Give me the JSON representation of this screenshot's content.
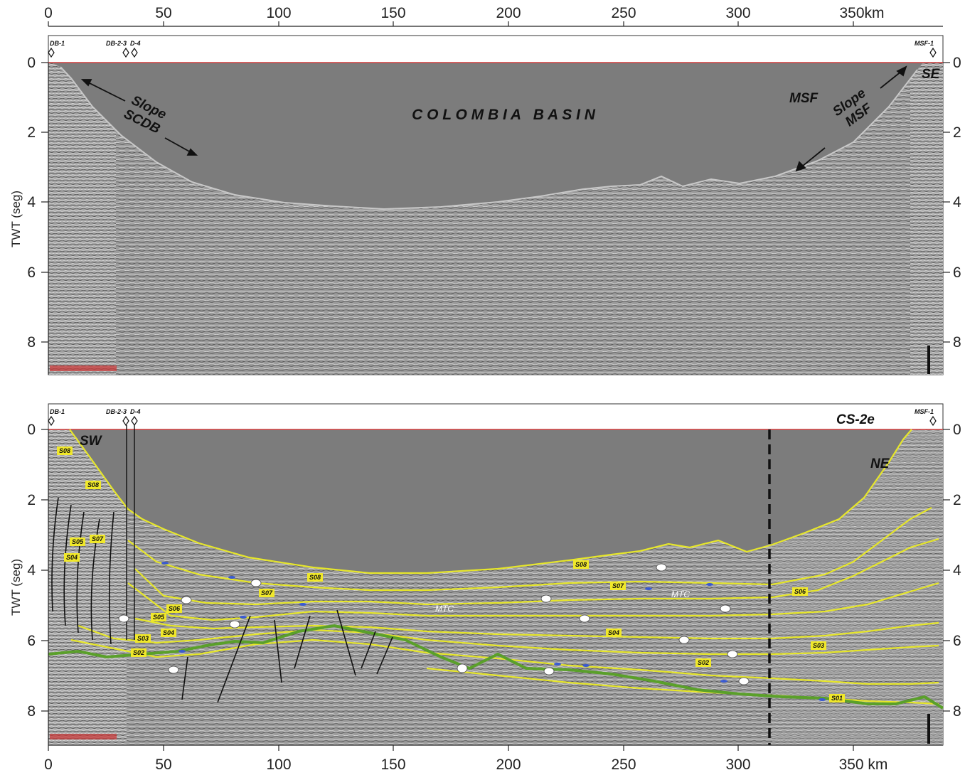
{
  "x_axis": {
    "ticks": [
      "0",
      "50",
      "100",
      "150",
      "200",
      "250",
      "300",
      "350km"
    ],
    "ticks_bottom": [
      "0",
      "50",
      "100",
      "150",
      "200",
      "250",
      "300",
      "350 km"
    ]
  },
  "y_axis": {
    "label": "TWT (seg)",
    "ticks": [
      "0",
      "2",
      "4",
      "6",
      "8"
    ]
  },
  "wells": {
    "db1": "DB-1",
    "db23": "DB-2-3",
    "d4": "D-4",
    "msf1": "MSF-1"
  },
  "top_panel": {
    "basin_title": "C O L O M B I A   B A S I N",
    "slope_left_1": "Slope",
    "slope_left_2": "SCDB",
    "slope_right_1": "Slope",
    "slope_right_2": "MSF",
    "msf": "MSF",
    "se": "SE"
  },
  "bottom_panel": {
    "profile_id": "CS-2e",
    "sw": "SW",
    "ne": "NE",
    "mtc": "MTC",
    "horizons": {
      "s08a": "S08",
      "s08b": "S08",
      "s08c": "S08",
      "s08d": "S08",
      "s07a": "S07",
      "s07b": "S07",
      "s07c": "S07",
      "s06a": "S06",
      "s06b": "S06",
      "s05a": "S05",
      "s05b": "S05",
      "s04a": "S04",
      "s04b": "S04",
      "s04c": "S04",
      "s03a": "S03",
      "s03b": "S03",
      "s02a": "S02",
      "s02b": "S02",
      "s01": "S01"
    }
  },
  "colors": {
    "water": "#7c7c7c",
    "seismic_bg": "#9a9a9a",
    "horizon": "#e6e62a",
    "basement": "#5aa02a",
    "sea_level": "#d23c3c",
    "label_fill": "#f0e82a"
  }
}
